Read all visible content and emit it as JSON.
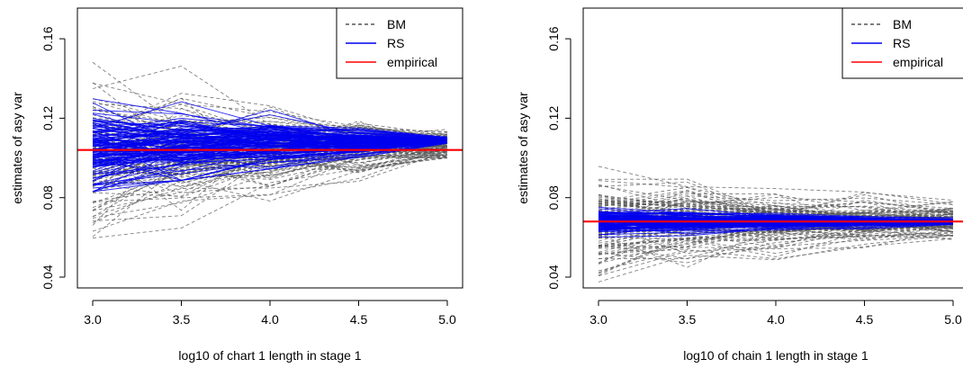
{
  "chart_data": [
    {
      "type": "line",
      "title": "",
      "xlabel": "log10 of chart 1 length in stage 1",
      "ylabel": "estimates of asy var",
      "xlim": [
        3.0,
        5.0
      ],
      "ylim": [
        0.04,
        0.17
      ],
      "x_ticks": [
        "3.0",
        "3.5",
        "4.0",
        "4.5",
        "5.0"
      ],
      "y_ticks": [
        "0.04",
        "0.08",
        "0.12",
        "0.16"
      ],
      "x": [
        3.0,
        3.5,
        4.0,
        4.5,
        5.0
      ],
      "legend": {
        "position": "top-right",
        "entries": [
          "BM",
          "RS",
          "empirical"
        ]
      },
      "series": [
        {
          "name": "BM",
          "style": "dashed",
          "color": "#555555",
          "center": [
            0.1,
            0.103,
            0.104,
            0.105,
            0.106
          ],
          "start_range": [
            0.053,
            0.167
          ],
          "end_range": [
            0.1,
            0.124
          ]
        },
        {
          "name": "RS",
          "style": "solid",
          "color": "#0000ee",
          "center": [
            0.105,
            0.106,
            0.107,
            0.108,
            0.109
          ],
          "start_range": [
            0.083,
            0.154
          ],
          "end_range": [
            0.106,
            0.111
          ]
        },
        {
          "name": "empirical",
          "style": "solid",
          "color": "#ff0000",
          "value": 0.104
        }
      ]
    },
    {
      "type": "line",
      "title": "",
      "xlabel": "log10 of chain 1 length in stage 1",
      "ylabel": "estimates of asy var",
      "xlim": [
        3.0,
        5.0
      ],
      "ylim": [
        0.04,
        0.17
      ],
      "x_ticks": [
        "3.0",
        "3.5",
        "4.0",
        "4.5",
        "5.0"
      ],
      "y_ticks": [
        "0.04",
        "0.08",
        "0.12",
        "0.16"
      ],
      "x": [
        3.0,
        3.5,
        4.0,
        4.5,
        5.0
      ],
      "legend": {
        "position": "top-right",
        "entries": [
          "BM",
          "RS",
          "empirical"
        ]
      },
      "series": [
        {
          "name": "BM",
          "style": "dashed",
          "color": "#555555",
          "center": [
            0.066,
            0.067,
            0.067,
            0.068,
            0.068
          ],
          "start_range": [
            0.035,
            0.102
          ],
          "end_range": [
            0.058,
            0.083
          ]
        },
        {
          "name": "RS",
          "style": "solid",
          "color": "#0000ee",
          "center": [
            0.068,
            0.068,
            0.068,
            0.068,
            0.068
          ],
          "start_range": [
            0.059,
            0.076
          ],
          "end_range": [
            0.066,
            0.07
          ]
        },
        {
          "name": "empirical",
          "style": "solid",
          "color": "#ff0000",
          "value": 0.068
        }
      ]
    }
  ]
}
